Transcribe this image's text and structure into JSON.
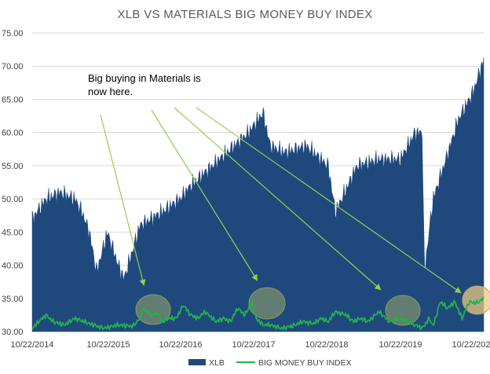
{
  "chart_data": {
    "type": "area",
    "title": "XLB VS MATERIALS BIG MONEY BUY INDEX",
    "xlabel": "",
    "ylabel": "",
    "ylim": [
      30,
      75
    ],
    "y_ticks": [
      "30.00",
      "35.00",
      "40.00",
      "45.00",
      "50.00",
      "55.00",
      "60.00",
      "65.00",
      "70.00",
      "75.00"
    ],
    "x_ticks": [
      "10/22/2014",
      "10/22/2015",
      "10/22/2016",
      "10/22/2017",
      "10/22/2018",
      "10/22/2019",
      "10/22/202"
    ],
    "grid": true,
    "legend_position": "bottom",
    "annotation": {
      "line1": "Big buying in Materials is",
      "line2": "now here."
    },
    "series": [
      {
        "name": "XLB",
        "kind": "area",
        "color": "#1f497d",
        "x": [
          2014.81,
          2015.0,
          2015.2,
          2015.4,
          2015.5,
          2015.6,
          2015.7,
          2015.85,
          2016.0,
          2016.08,
          2016.3,
          2016.6,
          2016.85,
          2017.0,
          2017.3,
          2017.6,
          2017.8,
          2018.0,
          2018.1,
          2018.3,
          2018.6,
          2018.9,
          2019.0,
          2019.3,
          2019.6,
          2019.9,
          2020.1,
          2020.2,
          2020.23,
          2020.35,
          2020.5,
          2020.7,
          2020.9,
          2021.05
        ],
        "y": [
          47,
          50,
          51,
          50,
          48,
          45,
          39,
          45,
          40,
          38,
          46,
          48,
          50,
          52,
          55,
          58,
          60,
          63,
          58,
          57,
          58,
          55,
          48,
          55,
          56,
          56,
          60,
          60,
          39,
          50,
          55,
          62,
          66,
          71
        ]
      },
      {
        "name": "BIG MONEY BUY INDEX",
        "kind": "line",
        "color": "#22b14c",
        "x": [
          2014.81,
          2014.9,
          2015.0,
          2015.1,
          2015.25,
          2015.4,
          2015.6,
          2015.8,
          2016.0,
          2016.2,
          2016.3,
          2016.35,
          2016.45,
          2016.55,
          2016.6,
          2016.7,
          2016.8,
          2016.9,
          2017.0,
          2017.1,
          2017.2,
          2017.35,
          2017.45,
          2017.55,
          2017.65,
          2017.75,
          2017.85,
          2017.9,
          2018.0,
          2018.1,
          2018.25,
          2018.4,
          2018.55,
          2018.7,
          2018.8,
          2018.9,
          2019.0,
          2019.15,
          2019.25,
          2019.35,
          2019.45,
          2019.6,
          2019.75,
          2019.85,
          2020.0,
          2020.1,
          2020.2,
          2020.3,
          2020.35,
          2020.45,
          2020.55,
          2020.65,
          2020.75,
          2020.85,
          2020.95,
          2021.05
        ],
        "y": [
          30.5,
          31.5,
          32.5,
          31.5,
          31,
          32,
          31.2,
          30.5,
          31,
          30.8,
          32,
          33.5,
          32.5,
          32.8,
          31.5,
          32,
          32,
          34,
          32.5,
          32,
          33,
          31.5,
          32,
          31.5,
          33.5,
          32.5,
          34.5,
          32,
          31,
          31,
          30.5,
          30.8,
          31.5,
          31.2,
          32,
          31.5,
          33,
          32.5,
          31.5,
          32,
          31.5,
          33,
          31.5,
          32,
          31.5,
          31,
          30.5,
          32,
          30.8,
          34.5,
          33.5,
          34.5,
          32,
          34.5,
          34.3,
          35
        ]
      }
    ]
  }
}
